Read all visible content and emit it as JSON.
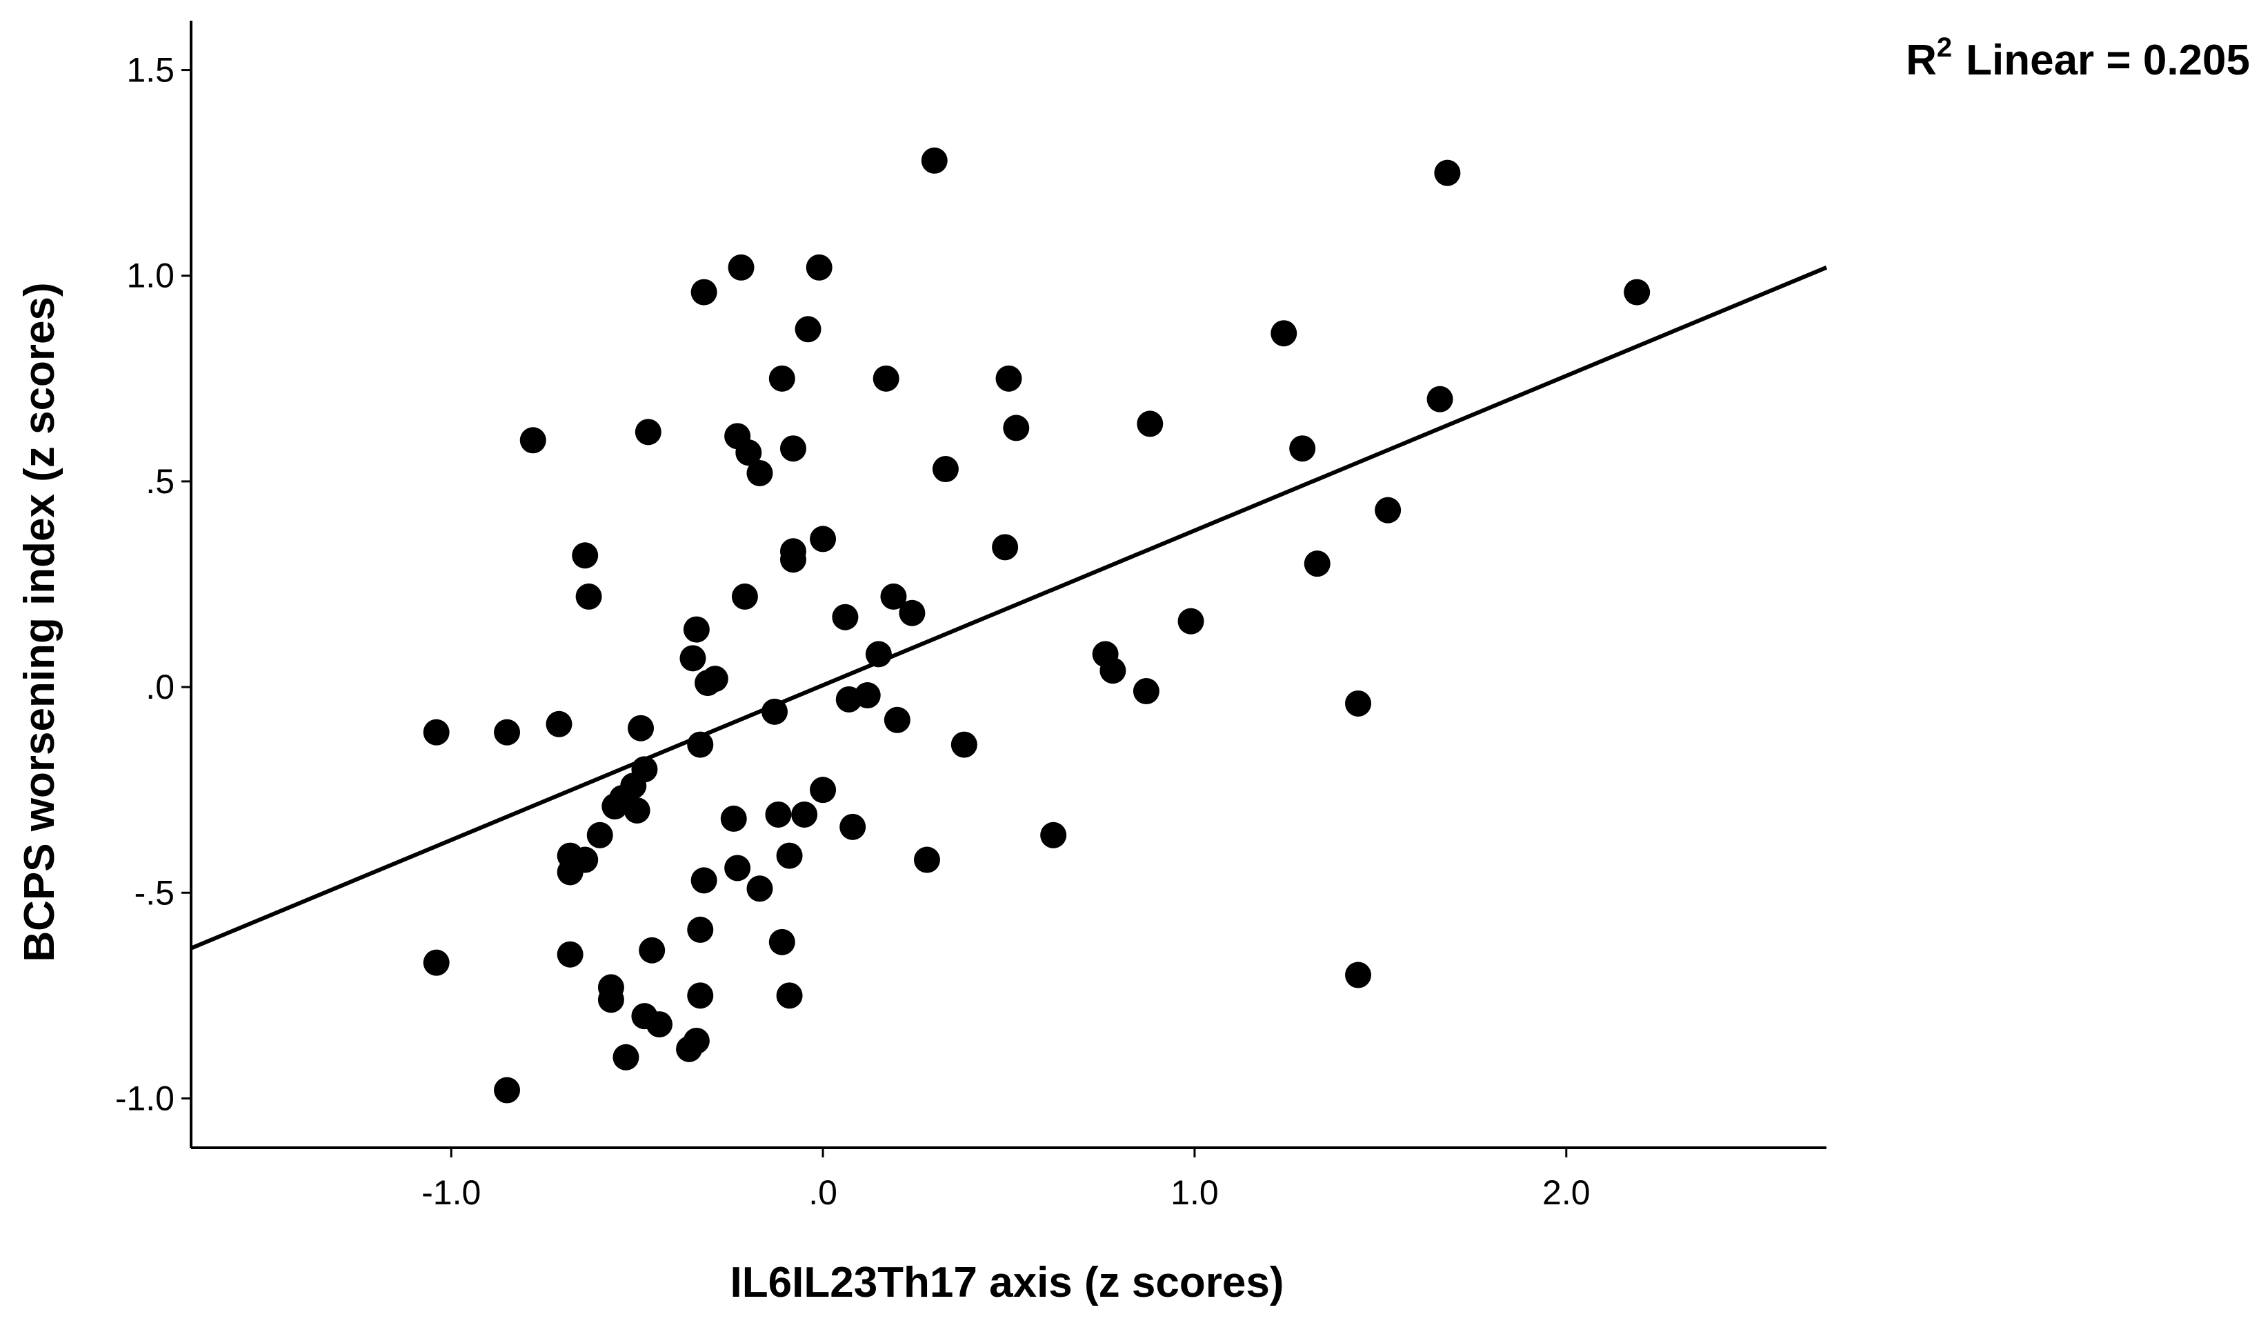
{
  "chart_data": {
    "type": "scatter",
    "xlabel": "IL6IL23Th17 axis (z scores)",
    "ylabel": "BCPS worsening index (z scores)",
    "xlim": [
      -1.7,
      2.7
    ],
    "ylim": [
      -1.12,
      1.62
    ],
    "x_ticks": [
      -1.0,
      0.0,
      1.0,
      2.0
    ],
    "x_tick_labels": [
      "-1.0",
      ".0",
      "1.0",
      "2.0"
    ],
    "y_ticks": [
      -1.0,
      -0.5,
      0.0,
      0.5,
      1.0,
      1.5
    ],
    "y_tick_labels": [
      "-1.0",
      "-.5",
      ".0",
      ".5",
      "1.0",
      "1.5"
    ],
    "grid": false,
    "fit_line": {
      "label": "Linear",
      "r2_text": "0.205",
      "points": [
        [
          -1.7,
          -0.635
        ],
        [
          2.7,
          1.02
        ]
      ]
    },
    "r2_annotation": {
      "prefix": "R",
      "superscript": "2",
      "text": "Linear = 0.205"
    },
    "marker_color": "#000000",
    "line_color": "#000000",
    "points": [
      [
        0.3,
        1.28
      ],
      [
        1.68,
        1.25
      ],
      [
        -0.22,
        1.02
      ],
      [
        -0.01,
        1.02
      ],
      [
        -0.32,
        0.96
      ],
      [
        2.19,
        0.96
      ],
      [
        -0.04,
        0.87
      ],
      [
        1.24,
        0.86
      ],
      [
        -0.11,
        0.75
      ],
      [
        0.17,
        0.75
      ],
      [
        0.5,
        0.75
      ],
      [
        1.66,
        0.7
      ],
      [
        -0.78,
        0.6
      ],
      [
        -0.47,
        0.62
      ],
      [
        -0.23,
        0.61
      ],
      [
        -0.2,
        0.57
      ],
      [
        -0.08,
        0.58
      ],
      [
        0.52,
        0.63
      ],
      [
        0.88,
        0.64
      ],
      [
        1.29,
        0.58
      ],
      [
        -0.17,
        0.52
      ],
      [
        0.33,
        0.53
      ],
      [
        1.52,
        0.43
      ],
      [
        -0.64,
        0.32
      ],
      [
        -0.08,
        0.33
      ],
      [
        -0.08,
        0.31
      ],
      [
        0.0,
        0.36
      ],
      [
        0.49,
        0.34
      ],
      [
        1.33,
        0.3
      ],
      [
        -0.63,
        0.22
      ],
      [
        -0.21,
        0.22
      ],
      [
        0.19,
        0.22
      ],
      [
        0.06,
        0.17
      ],
      [
        0.24,
        0.18
      ],
      [
        0.99,
        0.16
      ],
      [
        -0.34,
        0.14
      ],
      [
        -0.35,
        0.07
      ],
      [
        0.15,
        0.08
      ],
      [
        0.76,
        0.08
      ],
      [
        -0.31,
        0.01
      ],
      [
        -0.29,
        0.02
      ],
      [
        0.78,
        0.04
      ],
      [
        0.07,
        -0.03
      ],
      [
        0.12,
        -0.02
      ],
      [
        -0.13,
        -0.06
      ],
      [
        0.87,
        -0.01
      ],
      [
        1.44,
        -0.04
      ],
      [
        -1.04,
        -0.11
      ],
      [
        -0.85,
        -0.11
      ],
      [
        -0.71,
        -0.09
      ],
      [
        -0.49,
        -0.1
      ],
      [
        0.2,
        -0.08
      ],
      [
        -0.33,
        -0.14
      ],
      [
        0.38,
        -0.14
      ],
      [
        -0.48,
        -0.2
      ],
      [
        -0.51,
        -0.24
      ],
      [
        -0.54,
        -0.27
      ],
      [
        -0.56,
        -0.29
      ],
      [
        -0.5,
        -0.3
      ],
      [
        0.0,
        -0.25
      ],
      [
        -0.12,
        -0.31
      ],
      [
        -0.05,
        -0.31
      ],
      [
        -0.24,
        -0.32
      ],
      [
        0.08,
        -0.34
      ],
      [
        -0.6,
        -0.36
      ],
      [
        0.62,
        -0.36
      ],
      [
        -0.68,
        -0.41
      ],
      [
        -0.64,
        -0.42
      ],
      [
        -0.68,
        -0.45
      ],
      [
        -0.09,
        -0.41
      ],
      [
        0.28,
        -0.42
      ],
      [
        -0.23,
        -0.44
      ],
      [
        -0.32,
        -0.47
      ],
      [
        -0.17,
        -0.49
      ],
      [
        -0.33,
        -0.59
      ],
      [
        -0.11,
        -0.62
      ],
      [
        -1.04,
        -0.67
      ],
      [
        -0.68,
        -0.65
      ],
      [
        -0.46,
        -0.64
      ],
      [
        1.44,
        -0.7
      ],
      [
        -0.57,
        -0.73
      ],
      [
        -0.57,
        -0.76
      ],
      [
        -0.33,
        -0.75
      ],
      [
        -0.09,
        -0.75
      ],
      [
        -0.48,
        -0.8
      ],
      [
        -0.44,
        -0.82
      ],
      [
        -0.53,
        -0.9
      ],
      [
        -0.34,
        -0.86
      ],
      [
        -0.36,
        -0.88
      ],
      [
        -0.85,
        -0.98
      ]
    ]
  }
}
